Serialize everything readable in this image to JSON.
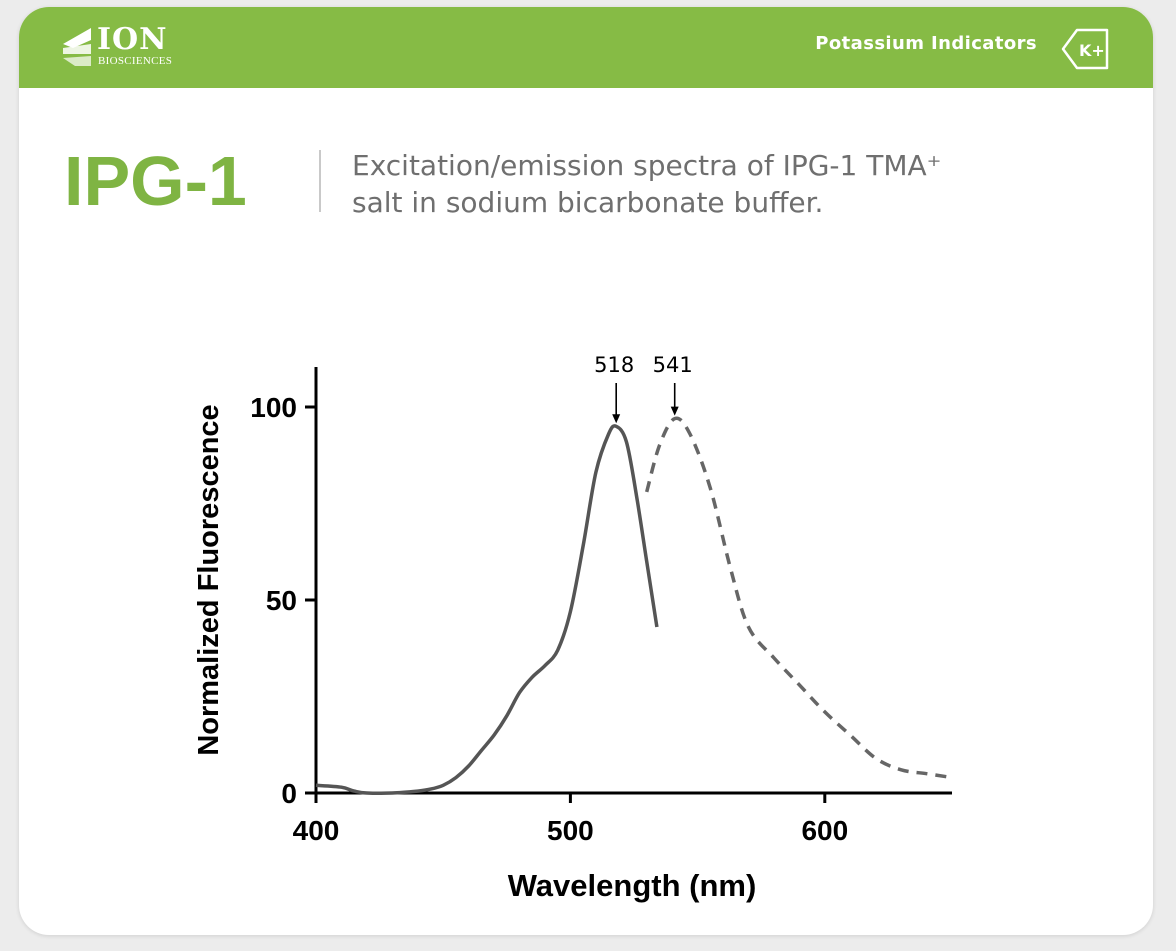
{
  "header": {
    "logo_word": "ION",
    "logo_sub": "BIOSCIENCES",
    "section": "Potassium Indicators",
    "badge": "K+",
    "accent_color": "#86bb45"
  },
  "title": {
    "product": "IPG-1",
    "description_line1": "Excitation/emission spectra of IPG-1 TMA⁺",
    "description_line2": "salt in sodium bicarbonate buffer."
  },
  "chart_data": {
    "type": "line",
    "xlabel": "Wavelength (nm)",
    "ylabel": "Normalized Fluorescence",
    "xlim": [
      400,
      650
    ],
    "ylim": [
      0,
      110
    ],
    "xticks": [
      400,
      500,
      600
    ],
    "yticks": [
      0,
      50,
      100
    ],
    "grid": false,
    "series": [
      {
        "name": "excitation",
        "style": "solid",
        "color": "#555555",
        "x": [
          400,
          410,
          415,
          420,
          430,
          440,
          445,
          450,
          455,
          460,
          465,
          470,
          475,
          480,
          485,
          490,
          495,
          500,
          505,
          510,
          515,
          518,
          522,
          526,
          530,
          534
        ],
        "y": [
          2,
          1.5,
          0.5,
          0,
          0,
          0.5,
          1,
          2,
          4,
          7,
          11,
          15,
          20,
          26,
          30,
          33,
          37,
          47,
          64,
          83,
          93,
          95,
          91,
          77,
          60,
          43
        ]
      },
      {
        "name": "emission",
        "style": "dashed",
        "color": "#666666",
        "x": [
          530,
          535,
          541,
          547,
          555,
          563,
          570,
          580,
          590,
          600,
          610,
          620,
          630,
          640,
          650
        ],
        "y": [
          78,
          90,
          97,
          93,
          79,
          58,
          43,
          35,
          28,
          21,
          15,
          9,
          6,
          5,
          4
        ]
      }
    ],
    "annotations": [
      {
        "label": "518",
        "x": 518,
        "y": 95
      },
      {
        "label": "541",
        "x": 541,
        "y": 97
      }
    ]
  }
}
